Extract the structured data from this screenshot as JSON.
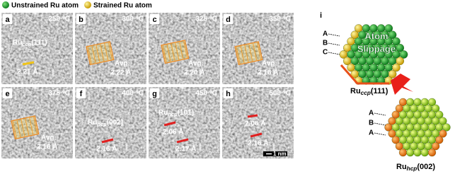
{
  "legend": {
    "unstrained": "Unstrained Ru atom",
    "strained": "Strained Ru atom"
  },
  "panels": [
    {
      "label": "a",
      "temperature": "250 °C",
      "phase": {
        "base": "Ru",
        "sub": "ccp",
        "suffix": "(111)"
      },
      "spacings": [
        "2.21 Å"
      ]
    },
    {
      "label": "b",
      "temperature": "300 °C",
      "avg": "Avg.",
      "spacings": [
        "2.22 Å"
      ]
    },
    {
      "label": "c",
      "temperature": "325 °C",
      "avg": "Avg.",
      "spacings": [
        "2.20 Å"
      ]
    },
    {
      "label": "d",
      "temperature": "350 °C",
      "avg": "Avg.",
      "spacings": [
        "2.16 Å"
      ]
    },
    {
      "label": "e",
      "temperature": "375 °C",
      "avg": "Avg.",
      "spacings": [
        "2.16 Å"
      ]
    },
    {
      "label": "f",
      "temperature": "400 °C",
      "phase": {
        "base": "Ru",
        "sub": "hcp",
        "suffix": "(002)"
      },
      "spacings": [
        "2.16 Å"
      ]
    },
    {
      "label": "g",
      "temperature": "450 °C",
      "phase": {
        "base": "Ru",
        "sub": "hcp",
        "suffix": "(101)"
      },
      "spacings": [
        "2.06 Å",
        "2.17 Å"
      ]
    },
    {
      "label": "h",
      "temperature": "500 °C",
      "spacings": [
        "2.06 Å",
        "2.16 Å"
      ]
    }
  ],
  "scale_bar": "1 nm",
  "panel_i": {
    "label": "i",
    "slippage": [
      "Atom",
      "Slippage"
    ],
    "top_layers": [
      "A",
      "B",
      "C"
    ],
    "top_name": {
      "base": "Ru",
      "sub": "ccp",
      "suffix": "(111)"
    },
    "bottom_layers": [
      "A",
      "B",
      "A"
    ],
    "bottom_name": {
      "base": "Ru",
      "sub": "hcp",
      "suffix": "(002)"
    }
  }
}
